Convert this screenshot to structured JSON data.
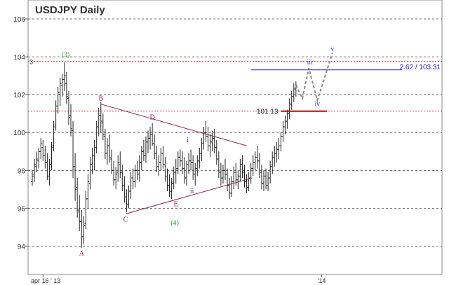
{
  "chart_data": {
    "type": "ohlc",
    "title": "USDJPY Daily",
    "ylim": [
      92.5,
      107
    ],
    "y_ticks": [
      "106",
      "104",
      "102",
      "100",
      "98",
      "96",
      "94"
    ],
    "y_tick_values": [
      106,
      104,
      102,
      100,
      98,
      96,
      94
    ],
    "x_labels": [
      "apr 16 ' 13",
      "'14"
    ],
    "x_label_days": [
      10,
      270
    ],
    "x_range": [
      0,
      360
    ],
    "colors": {
      "bars": "#222222",
      "grid": "#444444",
      "triangle": "#8b2252",
      "resistance": "#cc0000",
      "target": "#2222cc",
      "projection": "#888888",
      "wave_label": "#8b2252",
      "wave3_label": "#2a9a2a",
      "minor_wave_label": "#3333cc"
    },
    "series": [
      {
        "name": "price",
        "values": [
          [
            0,
            97.4,
            98.0,
            97.2,
            97.7
          ],
          [
            2,
            97.8,
            98.6,
            97.4,
            98.3
          ],
          [
            4,
            98.2,
            99.0,
            97.9,
            98.6
          ],
          [
            6,
            98.5,
            99.2,
            98.1,
            99.0
          ],
          [
            8,
            99.0,
            99.7,
            98.6,
            99.4
          ],
          [
            10,
            99.2,
            99.6,
            98.5,
            98.8
          ],
          [
            12,
            98.8,
            99.3,
            98.1,
            98.4
          ],
          [
            14,
            98.4,
            98.9,
            97.5,
            97.7
          ],
          [
            16,
            97.7,
            98.6,
            97.2,
            98.3
          ],
          [
            18,
            98.3,
            99.5,
            98.0,
            99.2
          ],
          [
            20,
            99.3,
            100.6,
            99.0,
            100.3
          ],
          [
            22,
            100.4,
            101.7,
            100.1,
            101.4
          ],
          [
            24,
            101.4,
            102.4,
            101.0,
            102.1
          ],
          [
            26,
            102.0,
            102.9,
            101.4,
            102.6
          ],
          [
            28,
            102.5,
            103.1,
            101.9,
            102.8
          ],
          [
            30,
            102.8,
            103.7,
            102.2,
            103.0
          ],
          [
            32,
            102.6,
            103.2,
            101.5,
            101.9
          ],
          [
            34,
            101.8,
            102.2,
            100.4,
            100.8
          ],
          [
            36,
            100.9,
            101.5,
            99.8,
            100.2
          ],
          [
            38,
            100.1,
            100.6,
            97.6,
            98.2
          ],
          [
            40,
            98.2,
            98.9,
            96.4,
            97.0
          ],
          [
            42,
            97.1,
            97.6,
            95.5,
            95.9
          ],
          [
            44,
            95.8,
            96.7,
            94.8,
            95.3
          ],
          [
            46,
            95.3,
            95.9,
            93.9,
            94.5
          ],
          [
            48,
            94.5,
            95.6,
            94.1,
            95.1
          ],
          [
            50,
            95.2,
            96.9,
            94.9,
            96.5
          ],
          [
            52,
            96.5,
            97.8,
            96.0,
            97.4
          ],
          [
            54,
            97.3,
            98.7,
            97.0,
            98.3
          ],
          [
            56,
            98.3,
            99.2,
            97.8,
            98.8
          ],
          [
            58,
            98.8,
            99.6,
            98.0,
            99.2
          ],
          [
            60,
            99.2,
            100.6,
            98.9,
            100.3
          ],
          [
            62,
            100.3,
            101.3,
            99.8,
            100.9
          ],
          [
            64,
            100.9,
            101.6,
            100.0,
            100.6
          ],
          [
            66,
            100.5,
            101.0,
            99.6,
            99.9
          ],
          [
            68,
            99.8,
            100.2,
            98.6,
            98.9
          ],
          [
            70,
            98.9,
            99.7,
            98.3,
            99.3
          ],
          [
            72,
            99.3,
            99.9,
            98.4,
            98.7
          ],
          [
            74,
            98.6,
            99.1,
            97.8,
            98.0
          ],
          [
            76,
            98.0,
            98.5,
            97.2,
            97.5
          ],
          [
            78,
            97.5,
            98.2,
            97.0,
            97.8
          ],
          [
            80,
            97.9,
            98.8,
            97.4,
            98.4
          ],
          [
            82,
            98.3,
            99.0,
            97.6,
            97.9
          ],
          [
            84,
            97.9,
            98.3,
            96.9,
            97.2
          ],
          [
            86,
            97.2,
            97.7,
            96.3,
            96.6
          ],
          [
            88,
            96.6,
            97.0,
            95.8,
            96.2
          ],
          [
            90,
            96.2,
            97.2,
            96.0,
            96.9
          ],
          [
            92,
            96.9,
            97.9,
            96.5,
            97.6
          ],
          [
            94,
            97.6,
            98.1,
            97.0,
            97.4
          ],
          [
            96,
            97.4,
            98.3,
            97.1,
            98.0
          ],
          [
            98,
            98.0,
            98.5,
            97.5,
            97.8
          ],
          [
            100,
            97.8,
            98.8,
            97.4,
            98.4
          ],
          [
            102,
            98.4,
            99.3,
            98.0,
            99.0
          ],
          [
            104,
            99.0,
            99.6,
            98.5,
            98.8
          ],
          [
            106,
            98.8,
            99.8,
            98.4,
            99.5
          ],
          [
            108,
            99.5,
            100.1,
            98.9,
            99.7
          ],
          [
            110,
            99.7,
            100.3,
            99.1,
            99.9
          ],
          [
            112,
            99.9,
            100.5,
            99.3,
            99.4
          ],
          [
            114,
            99.4,
            99.9,
            98.6,
            98.9
          ],
          [
            116,
            98.9,
            99.3,
            97.9,
            98.2
          ],
          [
            118,
            98.2,
            98.8,
            97.7,
            98.4
          ],
          [
            120,
            98.4,
            99.2,
            98.0,
            98.9
          ],
          [
            122,
            98.9,
            99.3,
            98.1,
            98.3
          ],
          [
            124,
            98.3,
            98.7,
            97.4,
            97.7
          ],
          [
            126,
            97.7,
            98.1,
            96.9,
            97.2
          ],
          [
            128,
            97.2,
            97.8,
            96.6,
            96.9
          ],
          [
            130,
            96.9,
            97.6,
            96.5,
            97.3
          ],
          [
            132,
            97.3,
            98.2,
            97.0,
            97.9
          ],
          [
            134,
            97.9,
            98.6,
            97.3,
            98.1
          ],
          [
            136,
            98.1,
            99.0,
            97.8,
            98.7
          ],
          [
            138,
            98.7,
            99.1,
            98.2,
            98.5
          ],
          [
            140,
            98.5,
            99.0,
            97.8,
            98.1
          ],
          [
            142,
            98.1,
            98.7,
            97.3,
            97.6
          ],
          [
            144,
            97.6,
            98.5,
            97.2,
            98.3
          ],
          [
            146,
            98.3,
            98.9,
            97.8,
            98.5
          ],
          [
            148,
            98.5,
            99.1,
            98.0,
            98.4
          ],
          [
            150,
            98.4,
            98.8,
            97.5,
            97.8
          ],
          [
            152,
            97.8,
            98.4,
            97.2,
            98.1
          ],
          [
            154,
            98.1,
            98.8,
            97.7,
            98.5
          ],
          [
            156,
            98.5,
            99.2,
            98.1,
            98.9
          ],
          [
            158,
            98.9,
            99.7,
            98.5,
            99.4
          ],
          [
            160,
            99.4,
            100.3,
            99.1,
            100.0
          ],
          [
            162,
            100.0,
            100.6,
            99.5,
            99.8
          ],
          [
            164,
            99.8,
            100.3,
            99.0,
            99.3
          ],
          [
            166,
            99.3,
            99.9,
            98.7,
            99.5
          ],
          [
            168,
            99.5,
            100.1,
            99.0,
            99.7
          ],
          [
            170,
            99.7,
            100.2,
            98.9,
            99.2
          ],
          [
            172,
            99.2,
            99.6,
            98.3,
            98.6
          ],
          [
            174,
            98.6,
            99.0,
            97.6,
            97.9
          ],
          [
            176,
            97.9,
            98.4,
            97.2,
            97.6
          ],
          [
            178,
            97.6,
            98.3,
            97.3,
            98.0
          ],
          [
            180,
            98.0,
            98.6,
            97.5,
            97.8
          ],
          [
            182,
            97.8,
            98.1,
            96.9,
            97.2
          ],
          [
            184,
            97.2,
            97.6,
            96.5,
            96.8
          ],
          [
            186,
            96.8,
            97.7,
            96.6,
            97.4
          ],
          [
            188,
            97.4,
            98.2,
            97.0,
            97.9
          ],
          [
            190,
            97.9,
            98.4,
            97.2,
            97.5
          ],
          [
            192,
            97.5,
            98.0,
            97.0,
            97.7
          ],
          [
            194,
            97.7,
            98.6,
            97.4,
            98.3
          ],
          [
            196,
            98.3,
            98.8,
            97.6,
            97.9
          ],
          [
            198,
            97.9,
            98.3,
            97.1,
            97.4
          ],
          [
            200,
            97.4,
            97.8,
            96.8,
            97.1
          ],
          [
            202,
            97.1,
            97.9,
            96.9,
            97.6
          ],
          [
            204,
            97.6,
            98.4,
            97.3,
            98.1
          ],
          [
            206,
            98.1,
            98.8,
            97.7,
            98.4
          ],
          [
            208,
            98.4,
            99.0,
            98.0,
            98.7
          ],
          [
            210,
            98.7,
            99.3,
            98.1,
            98.5
          ],
          [
            212,
            98.5,
            98.9,
            97.6,
            97.9
          ],
          [
            214,
            97.9,
            98.3,
            97.0,
            97.3
          ],
          [
            216,
            97.3,
            98.0,
            96.9,
            97.7
          ],
          [
            218,
            97.7,
            98.1,
            97.0,
            97.2
          ],
          [
            220,
            97.2,
            97.9,
            96.9,
            97.6
          ],
          [
            222,
            97.6,
            98.5,
            97.3,
            98.2
          ],
          [
            224,
            98.2,
            99.0,
            97.8,
            98.7
          ],
          [
            226,
            98.7,
            99.3,
            98.2,
            98.9
          ],
          [
            228,
            98.9,
            99.5,
            98.4,
            99.1
          ],
          [
            230,
            99.1,
            99.7,
            98.6,
            99.3
          ],
          [
            232,
            99.3,
            100.0,
            99.0,
            99.8
          ],
          [
            234,
            99.8,
            100.6,
            99.5,
            100.3
          ],
          [
            236,
            100.3,
            100.9,
            99.9,
            100.6
          ],
          [
            238,
            100.6,
            101.2,
            100.2,
            101.0
          ],
          [
            240,
            101.0,
            101.8,
            100.7,
            101.5
          ],
          [
            242,
            101.5,
            102.2,
            101.2,
            101.9
          ],
          [
            244,
            101.9,
            102.6,
            101.6,
            102.3
          ],
          [
            246,
            102.3,
            102.7,
            101.9,
            102.5
          ]
        ]
      }
    ],
    "annotations": {
      "wave_labels": [
        {
          "text": "(3)",
          "day": 31,
          "price": 104.0,
          "color": "wave3_label"
        },
        {
          "text": "A",
          "day": 46,
          "price": 93.5,
          "color": "wave_label"
        },
        {
          "text": "B",
          "day": 64,
          "price": 101.7,
          "color": "wave_label"
        },
        {
          "text": "C",
          "day": 87,
          "price": 95.3,
          "color": "wave_label"
        },
        {
          "text": "D",
          "day": 112,
          "price": 100.7,
          "color": "wave_label"
        },
        {
          "text": "E",
          "day": 134,
          "price": 96.1,
          "color": "wave_label"
        },
        {
          "text": "(4)",
          "day": 133,
          "price": 95.1,
          "color": "wave3_label"
        },
        {
          "text": "i",
          "day": 145,
          "price": 99.5,
          "color": "minor_wave_label"
        },
        {
          "text": "ii",
          "day": 149,
          "price": 96.8,
          "color": "minor_wave_label"
        },
        {
          "text": "iii",
          "day": 259,
          "price": 103.6,
          "color": "minor_wave_label"
        },
        {
          "text": "iv",
          "day": 266,
          "price": 101.4,
          "color": "minor_wave_label"
        },
        {
          "text": "v",
          "day": 280,
          "price": 104.3,
          "color": "minor_wave_label"
        }
      ],
      "triangle_lines": [
        {
          "from": [
            64,
            101.5
          ],
          "to": [
            200,
            99.3
          ]
        },
        {
          "from": [
            87,
            95.7
          ],
          "to": [
            205,
            97.6
          ]
        }
      ],
      "projection_path": [
        [
          246,
          102.5
        ],
        [
          252,
          101.8
        ],
        [
          258,
          103.4
        ],
        [
          266,
          101.7
        ],
        [
          280,
          104.2
        ]
      ],
      "levels": [
        {
          "label": "101.13",
          "price": 101.13,
          "day_from": 232,
          "day_to": 275,
          "style": "solid-thick",
          "color": "resistance"
        },
        {
          "label": "2.62 / 103.31",
          "price": 103.31,
          "day_from": 204,
          "day_to": 345,
          "style": "solid",
          "color": "target"
        }
      ],
      "dotted_levels": [
        {
          "price": 103.76,
          "label": "3",
          "color": "resistance"
        },
        {
          "price": 101.13,
          "label": "",
          "color": "resistance"
        }
      ],
      "dashed_grid": [
        106,
        104,
        102,
        100,
        98,
        96,
        94
      ]
    }
  }
}
